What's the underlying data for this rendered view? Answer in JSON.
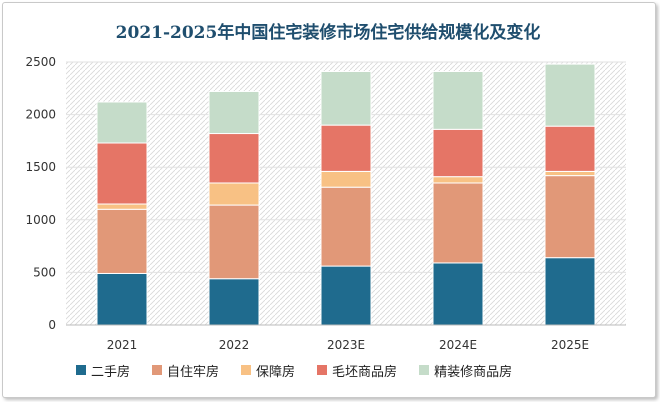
{
  "chart_data": {
    "type": "bar",
    "stacked": true,
    "title": "2021-2025年中国住宅装修市场住宅供给规模化及变化",
    "categories": [
      "2021",
      "2022",
      "2023E",
      "2024E",
      "2025E"
    ],
    "ylim": [
      0,
      2500
    ],
    "yticks": [
      "0",
      "500",
      "1000",
      "1500",
      "2000",
      "2500"
    ],
    "series": [
      {
        "name": "二手房",
        "color": "#1f6b8e",
        "values": [
          490,
          440,
          560,
          590,
          640
        ]
      },
      {
        "name": "自住牢房",
        "color": "#e19878",
        "values": [
          610,
          700,
          750,
          760,
          780
        ]
      },
      {
        "name": "保障房",
        "color": "#f8c184",
        "values": [
          50,
          210,
          150,
          60,
          40
        ]
      },
      {
        "name": "毛坯商品房",
        "color": "#e57566",
        "values": [
          580,
          470,
          440,
          450,
          430
        ]
      },
      {
        "name": "精装修商品房",
        "color": "#c5dcc9",
        "values": [
          390,
          400,
          510,
          550,
          590
        ]
      }
    ],
    "grid": true,
    "legend": "bottom"
  }
}
